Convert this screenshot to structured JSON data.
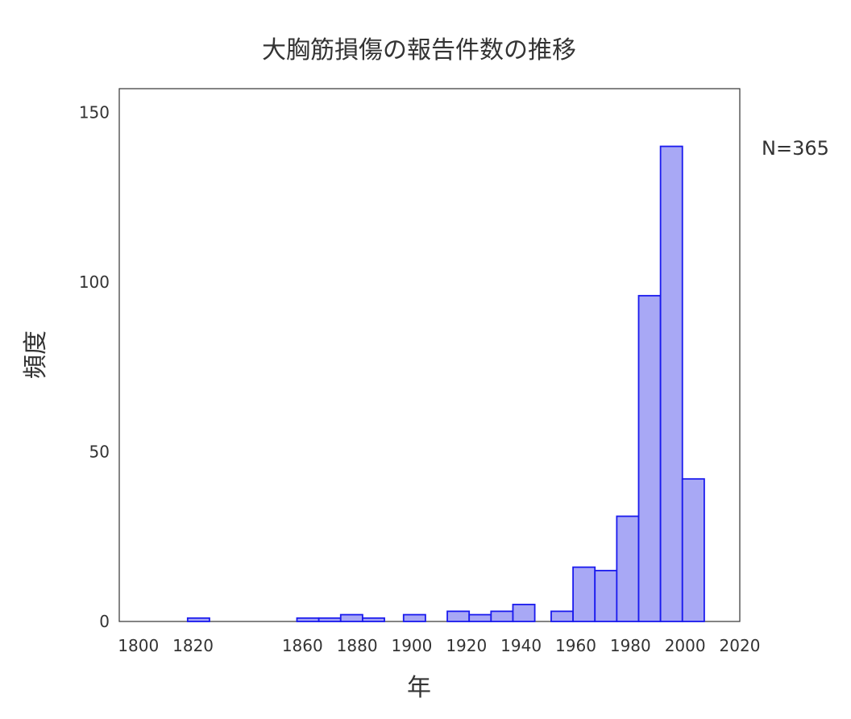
{
  "chart_data": {
    "type": "bar",
    "title": "大胸筋損傷の報告件数の推移",
    "xlabel": "年",
    "ylabel": "頻度",
    "annotation": "N=365",
    "xlim": [
      1793,
      2020
    ],
    "ylim": [
      0,
      157
    ],
    "x_ticks": [
      "1800",
      "1820",
      "1860",
      "1880",
      "1900",
      "1920",
      "1940",
      "1960",
      "1980",
      "2000",
      "2020"
    ],
    "y_ticks": [
      "0",
      "50",
      "100",
      "150"
    ],
    "bar_color": "#a8a8f5",
    "bar_edge_color": "#1a1aee",
    "grid": false,
    "bins": [
      {
        "start": 1818,
        "end": 1826,
        "value": 1
      },
      {
        "start": 1858,
        "end": 1866,
        "value": 1
      },
      {
        "start": 1866,
        "end": 1874,
        "value": 1
      },
      {
        "start": 1874,
        "end": 1882,
        "value": 2
      },
      {
        "start": 1882,
        "end": 1890,
        "value": 1
      },
      {
        "start": 1897,
        "end": 1905,
        "value": 2
      },
      {
        "start": 1913,
        "end": 1921,
        "value": 3
      },
      {
        "start": 1921,
        "end": 1929,
        "value": 2
      },
      {
        "start": 1929,
        "end": 1937,
        "value": 3
      },
      {
        "start": 1937,
        "end": 1945,
        "value": 5
      },
      {
        "start": 1951,
        "end": 1959,
        "value": 3
      },
      {
        "start": 1959,
        "end": 1967,
        "value": 16
      },
      {
        "start": 1967,
        "end": 1975,
        "value": 15
      },
      {
        "start": 1975,
        "end": 1983,
        "value": 31
      },
      {
        "start": 1983,
        "end": 1991,
        "value": 96
      },
      {
        "start": 1991,
        "end": 1999,
        "value": 140
      },
      {
        "start": 1999,
        "end": 2007,
        "value": 42
      }
    ]
  }
}
